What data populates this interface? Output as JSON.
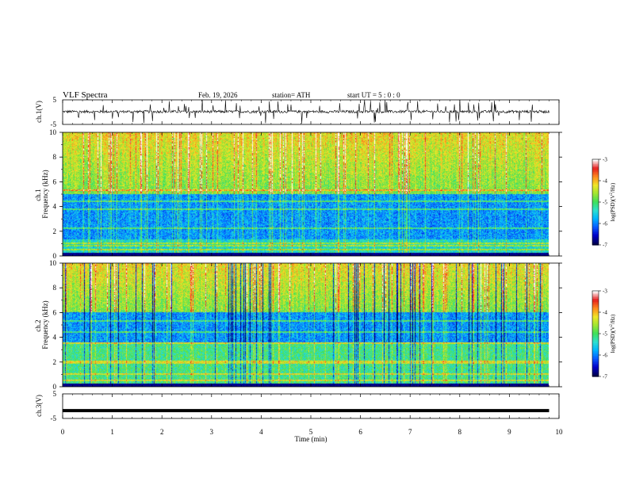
{
  "header": {
    "title": "VLF  Spectra",
    "date": "Feb. 19, 2026",
    "station": "station= ATH",
    "start_ut": "start  UT  =    5  : 0   : 0"
  },
  "chart_data": [
    {
      "type": "line",
      "id": "ch1-waveform",
      "ylabel": "ch.1(V)",
      "ylim": [
        -5,
        5
      ],
      "yticks": [
        "5",
        "-5"
      ],
      "xlim": [
        0,
        10
      ],
      "extent_min": 9.8,
      "baseline": 0.2,
      "noise_amplitude": 1.0,
      "spike_amplitude": 4.5
    },
    {
      "type": "heatmap",
      "id": "ch1-spectrogram",
      "ylabel": "ch.1\nFrequency (kHz)",
      "ylabel_parts": [
        "ch.1",
        "Frequency  (kHz)"
      ],
      "ylim": [
        0,
        10
      ],
      "yticks": [
        "0",
        "2",
        "4",
        "6",
        "8",
        "10"
      ],
      "xlim": [
        0,
        10
      ],
      "extent_min": 9.8,
      "colorbar": {
        "label": "log(PSD) (V²/Hz)",
        "label_parts": [
          "log(PSD)(V",
          "2",
          "/Hz)"
        ],
        "min": -7,
        "max": -3,
        "ticks": [
          "-3",
          "-4",
          "-5",
          "-6",
          "-7"
        ]
      },
      "blue_band_khz": [
        1.3,
        5.0
      ],
      "tone_lines_khz": [
        0.5,
        0.8,
        1.0,
        2.2,
        3.8,
        4.4,
        5.3
      ]
    },
    {
      "type": "heatmap",
      "id": "ch2-spectrogram",
      "ylabel": "ch.2\nFrequency (kHz)",
      "ylabel_parts": [
        "ch.2",
        "Frequency  (kHz)"
      ],
      "ylim": [
        0,
        10
      ],
      "yticks": [
        "0",
        "2",
        "4",
        "6",
        "8",
        "10"
      ],
      "xlim": [
        0,
        10
      ],
      "extent_min": 9.8,
      "colorbar": {
        "label": "log(PSD) (V²/Hz)",
        "label_parts": [
          "log(PSD)(V",
          "2",
          "/Hz)"
        ],
        "min": -7,
        "max": -3,
        "ticks": [
          "-3",
          "-4",
          "-5",
          "-6",
          "-7"
        ]
      },
      "blue_band_khz": [
        3.6,
        6.0
      ],
      "tone_lines_khz": [
        0.5,
        1.0,
        1.9,
        2.0,
        3.5,
        4.4,
        5.3
      ]
    },
    {
      "type": "line",
      "id": "ch3-waveform",
      "ylabel": "ch.3(V)",
      "ylim": [
        -5,
        5
      ],
      "yticks": [
        "5",
        "-5"
      ],
      "xlim": [
        0,
        10
      ],
      "extent_min": 9.8,
      "baseline": -1.8,
      "noise_amplitude": 0.0
    }
  ],
  "xaxis": {
    "label": "Time  (min)",
    "ticks": [
      "0",
      "1",
      "2",
      "3",
      "4",
      "5",
      "6",
      "7",
      "8",
      "9",
      "10"
    ]
  },
  "colors": {
    "colormap": [
      "#000050",
      "#0000c8",
      "#0a5aff",
      "#00b4ff",
      "#2ee0d0",
      "#3fe05a",
      "#a0e632",
      "#f0e628",
      "#ff8c1e",
      "#e61e1e",
      "#ffffff"
    ]
  }
}
